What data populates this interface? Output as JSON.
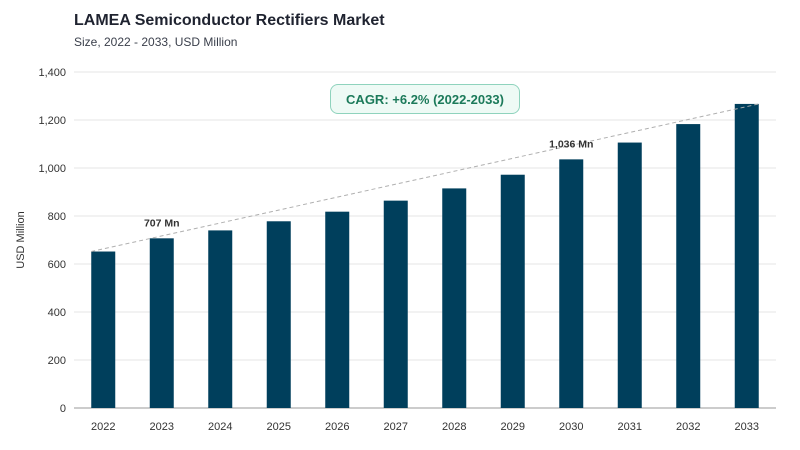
{
  "header": {
    "title": "LAMEA Semiconductor Rectifiers Market",
    "subtitle": "Size, 2022 - 2033, USD Million"
  },
  "annotation": {
    "cagr": "CAGR: +6.2% (2022-2033)"
  },
  "chart_data": {
    "type": "bar",
    "ylabel": "USD Million",
    "xlabel": "",
    "ylim": [
      0,
      1400
    ],
    "yticks": [
      0,
      200,
      400,
      600,
      800,
      1000,
      1200,
      1400
    ],
    "ytick_labels": [
      "0",
      "200",
      "400",
      "600",
      "800",
      "1,000",
      "1,200",
      "1,400"
    ],
    "grid": true,
    "categories": [
      "2022",
      "2023",
      "2024",
      "2025",
      "2026",
      "2027",
      "2028",
      "2029",
      "2030",
      "2031",
      "2032",
      "2033"
    ],
    "values": [
      652,
      707,
      740,
      778,
      818,
      864,
      915,
      972,
      1036,
      1106,
      1183,
      1267
    ],
    "data_labels": [
      {
        "index": 1,
        "text": "707 Mn"
      },
      {
        "index": 8,
        "text": "1,036 Mn"
      }
    ],
    "trend_line": {
      "from_index": 0,
      "to_index": 11,
      "style": "dashed"
    },
    "colors": {
      "bar": "#003f5c",
      "grid": "#e6e6e6",
      "trend": "#b0b0b0",
      "axis": "#999999"
    }
  }
}
